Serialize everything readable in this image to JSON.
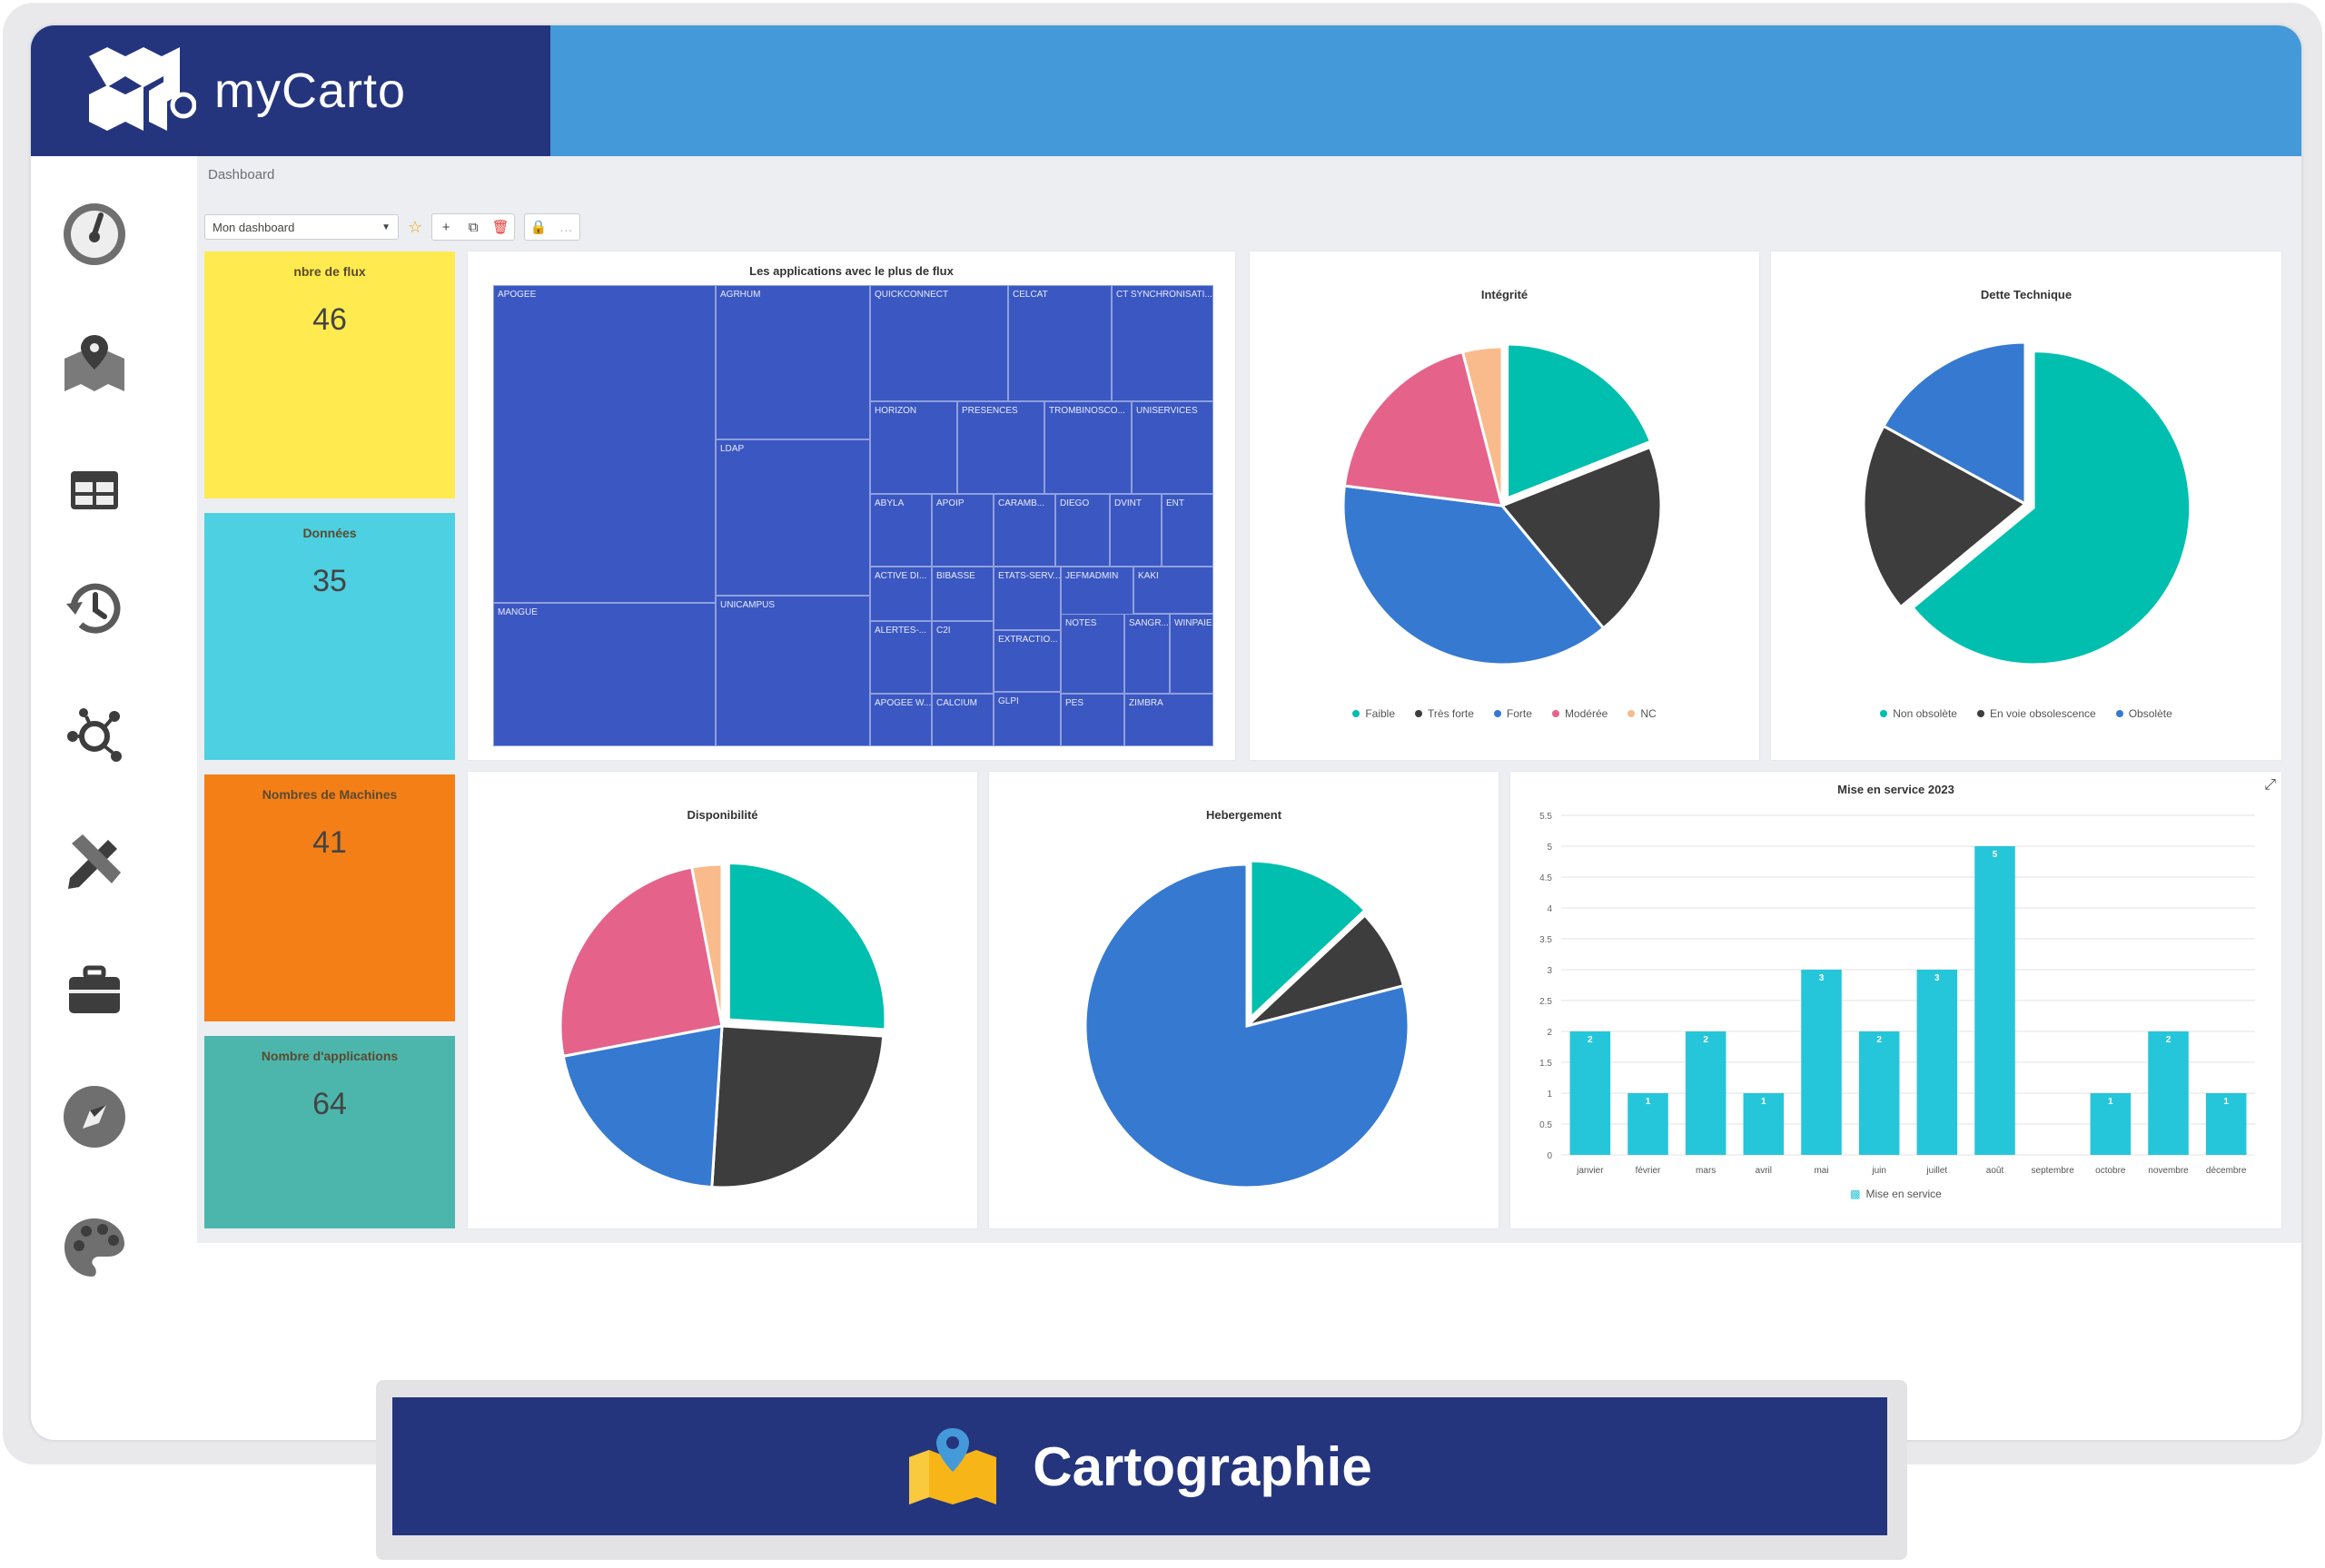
{
  "app": {
    "name": "myCarto"
  },
  "breadcrumb": "Dashboard",
  "toolbar": {
    "dashboard_select": "Mon dashboard",
    "icons": [
      "star-icon",
      "plus-icon",
      "copy-icon",
      "trash-icon",
      "lock-icon"
    ]
  },
  "sidebar": {
    "items": [
      {
        "icon": "dashboard-gauge-icon"
      },
      {
        "icon": "map-pin-icon"
      },
      {
        "icon": "table-icon"
      },
      {
        "icon": "history-icon"
      },
      {
        "icon": "network-icon"
      },
      {
        "icon": "pencil-ruler-icon"
      },
      {
        "icon": "briefcase-icon"
      },
      {
        "icon": "compass-icon"
      },
      {
        "icon": "palette-icon"
      }
    ]
  },
  "kpis": [
    {
      "title": "nbre de flux",
      "value": "46",
      "color": "#ffeb4f"
    },
    {
      "title": "Données",
      "value": "35",
      "color": "#4dd0e1"
    },
    {
      "title": "Nombres de Machines",
      "value": "41",
      "color": "#f57f17"
    },
    {
      "title": "Nombre d'applications",
      "value": "64",
      "color": "#4db6ac"
    }
  ],
  "colors": {
    "teal": "#00bfae",
    "dark": "#3d3d3d",
    "blue": "#3679d1",
    "pink": "#e5638b",
    "peach": "#f9bb8c",
    "bar": "#26c6da",
    "treemap": "#3b57c1"
  },
  "chart_data": [
    {
      "type": "treemap",
      "title": "Les applications avec le plus de flux",
      "labels": [
        "APOGEE",
        "AGRHUM",
        "QUICKCONNECT",
        "CELCAT",
        "CT SYNCHRONISATI...",
        "HORIZON",
        "PRESENCES",
        "TROMBINOSCO...",
        "UNISERVICES",
        "LDAP",
        "ABYLA",
        "APOIP",
        "CARAMB...",
        "DIEGO",
        "DVINT",
        "ENT",
        "ACTIVE DI...",
        "BIBASSE",
        "ETATS-SERV...",
        "JEFMADMIN",
        "KAKI",
        "ALERTES-...",
        "C2I",
        "EXTRACTIO...",
        "NOTES",
        "SANGR...",
        "WINPAIE",
        "APOGEE W...",
        "CALCIUM",
        "GLPI",
        "PES",
        "ZIMBRA",
        "MANGUE",
        "UNICAMPUS"
      ]
    },
    {
      "type": "pie",
      "title": "Intégrité",
      "labels": [
        "Faible",
        "Très forte",
        "Forte",
        "Modérée",
        "NC"
      ],
      "values": [
        19,
        20,
        38,
        19,
        4
      ],
      "exploded": "Faible"
    },
    {
      "type": "pie",
      "title": "Dette Technique",
      "labels": [
        "Non obsolète",
        "En voie obsolescence",
        "Obsolète"
      ],
      "values": [
        64,
        19,
        17
      ],
      "exploded": "Non obsolète"
    },
    {
      "type": "pie",
      "title": "Disponibilité",
      "labels": [
        "teal",
        "dark",
        "blue",
        "pink",
        "peach"
      ],
      "values": [
        26,
        25,
        21,
        25,
        3
      ],
      "exploded": "teal"
    },
    {
      "type": "pie",
      "title": "Hebergement",
      "labels": [
        "teal",
        "dark",
        "blue"
      ],
      "values": [
        13,
        8,
        79
      ],
      "exploded": "teal"
    },
    {
      "type": "bar",
      "title": "Mise en service 2023",
      "categories": [
        "janvier",
        "février",
        "mars",
        "avril",
        "mai",
        "juin",
        "juillet",
        "août",
        "septembre",
        "octobre",
        "novembre",
        "décembre"
      ],
      "values": [
        2,
        1,
        2,
        1,
        3,
        2,
        3,
        5,
        0,
        1,
        2,
        1
      ],
      "value_labels": [
        "2",
        "1",
        "2",
        "1",
        "3",
        "2",
        "3",
        "5",
        "",
        "1",
        "2",
        "1"
      ],
      "yticks": [
        "5.5",
        "5",
        "4.5",
        "4",
        "3.5",
        "3",
        "2.5",
        "2",
        "1.5",
        "1",
        "0.5",
        "0"
      ],
      "ylim": [
        0,
        5.5
      ],
      "legend": "Mise en service"
    }
  ],
  "banner": {
    "label": "Cartographie"
  }
}
